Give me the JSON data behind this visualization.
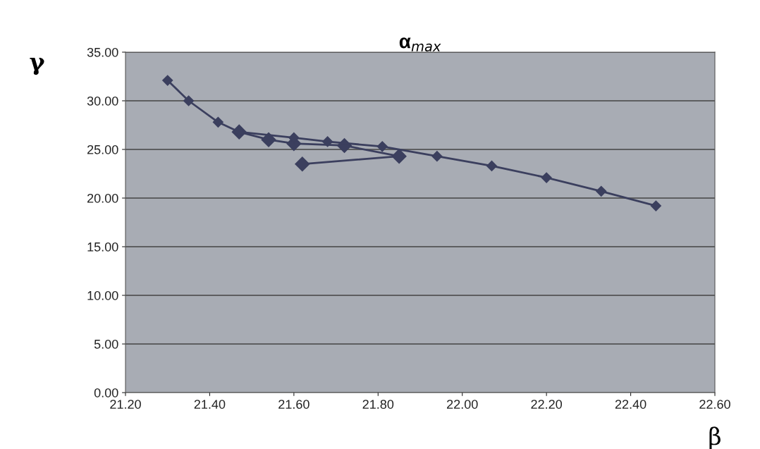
{
  "chart_data": {
    "type": "line",
    "title": "α$_{max}$",
    "xlabel": "β",
    "ylabel": "γ",
    "xlim": [
      21.2,
      22.6
    ],
    "xticks": [
      {
        "value": 21.2,
        "label": "21.20"
      },
      {
        "value": 21.4,
        "label": "21.40"
      },
      {
        "value": 21.6,
        "label": "21.60"
      },
      {
        "value": 21.8,
        "label": "21.80"
      },
      {
        "value": 22.0,
        "label": "22.00"
      },
      {
        "value": 22.2,
        "label": "22.20"
      },
      {
        "value": 22.4,
        "label": "22.40"
      },
      {
        "value": 22.6,
        "label": "22.60"
      }
    ],
    "ylim": [
      0,
      35
    ],
    "yticks": [
      {
        "value": 0,
        "label": "0.00"
      },
      {
        "value": 5,
        "label": "5.00"
      },
      {
        "value": 10,
        "label": "10.00"
      },
      {
        "value": 15,
        "label": "15.00"
      },
      {
        "value": 20,
        "label": "20.00"
      },
      {
        "value": 25,
        "label": "25.00"
      },
      {
        "value": 30,
        "label": "30.00"
      },
      {
        "value": 35,
        "label": "35.00"
      }
    ],
    "grid": "y",
    "marker": "diamond",
    "line_style": "solid",
    "series": [
      {
        "color": "#3b3f5e",
        "x": [
          21.3,
          21.35,
          21.42,
          21.47,
          21.6,
          21.68,
          21.81,
          21.94,
          22.07,
          22.2,
          22.33,
          22.46
        ],
        "values": [
          32.1,
          30.0,
          27.8,
          26.8,
          26.2,
          25.8,
          25.3,
          24.3,
          23.3,
          22.1,
          20.7,
          19.2
        ]
      },
      {
        "color": "#3b3f5e",
        "x": [
          21.47,
          21.54,
          21.6,
          21.72,
          21.85,
          21.62
        ],
        "values": [
          26.8,
          26.0,
          25.6,
          25.4,
          24.3,
          23.5
        ]
      }
    ]
  }
}
